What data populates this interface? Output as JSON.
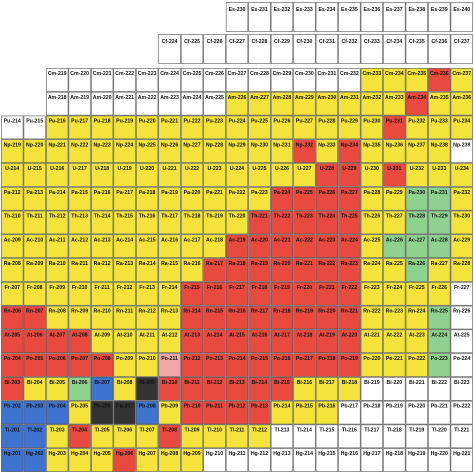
{
  "rows": [
    {
      "start": 10,
      "names": [
        "Es-230",
        "Es-231",
        "Es-232",
        "Es-233",
        "Es-234",
        "Es-235",
        "Es-236",
        "Es-237",
        "Es-238",
        "Es-239",
        "Es-240"
      ],
      "colors": [
        "#fff",
        "#fff",
        "#fff",
        "#fff",
        "#fff",
        "#fff",
        "#fff",
        "#fff",
        "#fff",
        "#fff",
        "#fff"
      ]
    },
    {
      "start": 7,
      "names": [
        "Cf-224",
        "Cf-225",
        "Cf-226",
        "Cf-227",
        "Cf-228",
        "Cf-229",
        "Cf-230",
        "Cf-231",
        "Cf-232",
        "Cf-233",
        "Cf-234",
        "Cf-235",
        "Cf-236",
        "Cf-237"
      ],
      "colors": [
        "#fff",
        "#fff",
        "#fff",
        "#fff",
        "#fff",
        "#fff",
        "#fff",
        "#fff",
        "#fff",
        "#fff",
        "#fff",
        "#fff",
        "#fff",
        "#fff"
      ]
    },
    {
      "start": 2,
      "names": [
        "Cm-219",
        "Cm-220",
        "Cm-221",
        "Cm-222",
        "Cm-223",
        "Cm-224",
        "Cm-225",
        "Cm-226",
        "Cm-227",
        "Cm-228",
        "Cm-229",
        "Cm-230",
        "Cm-231",
        "Cm-232",
        "Cm-233",
        "Cm-234",
        "Cm-235",
        "Cm-236",
        "Cm-237"
      ],
      "colors": [
        "#fff",
        "#fff",
        "#fff",
        "#fff",
        "#fff",
        "#fff",
        "#fff",
        "#fff",
        "#fff",
        "#fff",
        "#fff",
        "#fff",
        "#fff",
        "#fff",
        "#f3e33b",
        "#f3e33b",
        "#f3e33b",
        "#e84a3f",
        "#f3e33b"
      ]
    },
    {
      "start": 2,
      "names": [
        "Am-218",
        "Am-219",
        "Am-220",
        "Am-221",
        "Am-222",
        "Am-223",
        "Am-224",
        "Am-225",
        "Am-226",
        "Am-227",
        "Am-228",
        "Am-229",
        "Am-230",
        "Am-231",
        "Am-232",
        "Am-233",
        "Am-234",
        "Am-235",
        "Am-236"
      ],
      "colors": [
        "#fff",
        "#fff",
        "#fff",
        "#fff",
        "#fff",
        "#fff",
        "#fff",
        "#fff",
        "#f3e33b",
        "#f3e33b",
        "#f3e33b",
        "#f3e33b",
        "#f3e33b",
        "#f3e33b",
        "#f3e33b",
        "#f3e33b",
        "#e84a3f",
        "#f3e33b",
        "#f3e33b"
      ]
    },
    {
      "start": 0,
      "names": [
        "Pu-214",
        "Pu-215",
        "Pu-216",
        "Pu-217",
        "Pu-218",
        "Pu-219",
        "Pu-220",
        "Pu-221",
        "Pu-222",
        "Pu-223",
        "Pu-224",
        "Pu-225",
        "Pu-226",
        "Pu-227",
        "Pu-228",
        "Pu-229",
        "Pu-230",
        "Pu-231",
        "Pu-232",
        "Pu-233",
        "Pu-234"
      ],
      "colors": [
        "#fff",
        "#fff",
        "#f3e33b",
        "#f3e33b",
        "#f3e33b",
        "#f3e33b",
        "#f3e33b",
        "#f3e33b",
        "#f3e33b",
        "#f3e33b",
        "#f3e33b",
        "#f3e33b",
        "#f3e33b",
        "#f3e33b",
        "#f3e33b",
        "#f3e33b",
        "#f3e33b",
        "#e84a3f",
        "#f3e33b",
        "#f3e33b",
        "#f3e33b"
      ]
    },
    {
      "start": 0,
      "names": [
        "Np-219",
        "Np-220",
        "Np-221",
        "Np-222",
        "Np-223",
        "Np-224",
        "Np-225",
        "Np-226",
        "Np-227",
        "Np-228",
        "Np-229",
        "Np-230",
        "Np-231",
        "Np-232",
        "Np-233",
        "Np-234",
        "Np-235",
        "Np-236",
        "Np-237",
        "Np-238",
        "Np-239"
      ],
      "colors": [
        "#f3e33b",
        "#f3e33b",
        "#f3e33b",
        "#f3e33b",
        "#f3e33b",
        "#f3e33b",
        "#f3e33b",
        "#f3e33b",
        "#f3e33b",
        "#f3e33b",
        "#f3e33b",
        "#f3e33b",
        "#f3e33b",
        "#e84a3f",
        "#f3e33b",
        "#e84a3f",
        "#f3e33b",
        "#f3e33b",
        "#f3e33b",
        "#f3e33b",
        "#fff"
      ]
    },
    {
      "start": 0,
      "names": [
        "U-214",
        "U-215",
        "U-216",
        "U-217",
        "U-218",
        "U-219",
        "U-220",
        "U-221",
        "U-222",
        "U-223",
        "U-224",
        "U-225",
        "U-226",
        "U-227",
        "U-228",
        "U-229",
        "U-230",
        "U-231",
        "U-232",
        "U-233",
        "U-234"
      ],
      "colors": [
        "#f3e33b",
        "#f3e33b",
        "#f3e33b",
        "#f3e33b",
        "#f3e33b",
        "#f3e33b",
        "#f3e33b",
        "#f3e33b",
        "#f3e33b",
        "#f3e33b",
        "#f3e33b",
        "#f3e33b",
        "#f3e33b",
        "#f3e33b",
        "#e84a3f",
        "#e84a3f",
        "#f3e33b",
        "#e84a3f",
        "#f3e33b",
        "#f3e33b",
        "#f3e33b"
      ]
    },
    {
      "start": 0,
      "names": [
        "Pa-212",
        "Pa-213",
        "Pa-214",
        "Pa-215",
        "Pa-216",
        "Pa-217",
        "Pa-218",
        "Pa-219",
        "Pa-220",
        "Pa-221",
        "Pa-222",
        "Pa-223",
        "Pa-224",
        "Pa-225",
        "Pa-226",
        "Pa-227",
        "Pa-228",
        "Pa-229",
        "Pa-230",
        "Pa-231",
        "Pa-232"
      ],
      "colors": [
        "#f3e33b",
        "#f3e33b",
        "#f3e33b",
        "#f3e33b",
        "#f3e33b",
        "#f3e33b",
        "#f3e33b",
        "#f3e33b",
        "#f3e33b",
        "#f3e33b",
        "#f3e33b",
        "#f3e33b",
        "#e84a3f",
        "#e84a3f",
        "#e84a3f",
        "#e84a3f",
        "#f3e33b",
        "#f3e33b",
        "#8fd18f",
        "#8fd18f",
        "#f3e33b"
      ]
    },
    {
      "start": 0,
      "names": [
        "Th-210",
        "Th-211",
        "Th-212",
        "Th-213",
        "Th-214",
        "Th-215",
        "Th-216",
        "Th-217",
        "Th-218",
        "Th-219",
        "Th-220",
        "Th-221",
        "Th-222",
        "Th-223",
        "Th-224",
        "Th-225",
        "Th-226",
        "Th-227",
        "Th-228",
        "Th-229",
        "Th-230"
      ],
      "colors": [
        "#f3e33b",
        "#f3e33b",
        "#f3e33b",
        "#f3e33b",
        "#f3e33b",
        "#f3e33b",
        "#f3e33b",
        "#f3e33b",
        "#f3e33b",
        "#f3e33b",
        "#f3e33b",
        "#e84a3f",
        "#e84a3f",
        "#e84a3f",
        "#e84a3f",
        "#e84a3f",
        "#f3e33b",
        "#f3e33b",
        "#8fd18f",
        "#8fd18f",
        "#f3e33b"
      ]
    },
    {
      "start": 0,
      "names": [
        "Ac-209",
        "Ac-210",
        "Ac-211",
        "Ac-212",
        "Ac-213",
        "Ac-214",
        "Ac-215",
        "Ac-216",
        "Ac-217",
        "Ac-218",
        "Ac-219",
        "Ac-220",
        "Ac-221",
        "Ac-222",
        "Ac-223",
        "Ac-224",
        "Ac-225",
        "Ac-226",
        "Ac-227",
        "Ac-228",
        "Ac-229"
      ],
      "colors": [
        "#f3e33b",
        "#f3e33b",
        "#f3e33b",
        "#f3e33b",
        "#f3e33b",
        "#f3e33b",
        "#f3e33b",
        "#f3e33b",
        "#f3e33b",
        "#f3e33b",
        "#e84a3f",
        "#e84a3f",
        "#e84a3f",
        "#e84a3f",
        "#e84a3f",
        "#e84a3f",
        "#f3e33b",
        "#8fd18f",
        "#8fd18f",
        "#8fd18f",
        "#f3e33b"
      ]
    },
    {
      "start": 0,
      "names": [
        "Ra-208",
        "Ra-209",
        "Ra-210",
        "Ra-211",
        "Ra-212",
        "Ra-213",
        "Ra-214",
        "Ra-215",
        "Ra-216",
        "Ra-217",
        "Ra-218",
        "Ra-219",
        "Ra-220",
        "Ra-221",
        "Ra-222",
        "Ra-223",
        "Ra-224",
        "Ra-225",
        "Ra-226",
        "Ra-227",
        "Ra-228"
      ],
      "colors": [
        "#f3e33b",
        "#f3e33b",
        "#f3e33b",
        "#f3e33b",
        "#f3e33b",
        "#f3e33b",
        "#f3e33b",
        "#f3e33b",
        "#f3e33b",
        "#e84a3f",
        "#e84a3f",
        "#e84a3f",
        "#e84a3f",
        "#e84a3f",
        "#e84a3f",
        "#e84a3f",
        "#f3e33b",
        "#f3e33b",
        "#8fd18f",
        "#f3e33b",
        "#f3e33b"
      ]
    },
    {
      "start": 0,
      "names": [
        "Fr-207",
        "Fr-208",
        "Fr-209",
        "Fr-210",
        "Fr-211",
        "Fr-212",
        "Fr-213",
        "Fr-214",
        "Fr-215",
        "Fr-216",
        "Fr-217",
        "Fr-218",
        "Fr-219",
        "Fr-220",
        "Fr-221",
        "Fr-222",
        "Fr-223",
        "Fr-224",
        "Fr-225",
        "Fr-226",
        "Fr-227"
      ],
      "colors": [
        "#f3e33b",
        "#f3e33b",
        "#f3e33b",
        "#f3e33b",
        "#f3e33b",
        "#f3e33b",
        "#f3e33b",
        "#f3e33b",
        "#e84a3f",
        "#e84a3f",
        "#e84a3f",
        "#e84a3f",
        "#e84a3f",
        "#e84a3f",
        "#e84a3f",
        "#e84a3f",
        "#f3e33b",
        "#f3e33b",
        "#f3e33b",
        "#f3e33b",
        "#fff"
      ]
    },
    {
      "start": 0,
      "names": [
        "Rn-206",
        "Rn-207",
        "Rn-208",
        "Rn-209",
        "Rn-210",
        "Rn-211",
        "Rn-212",
        "Rn-213",
        "Rn-214",
        "Rn-215",
        "Rn-216",
        "Rn-217",
        "Rn-218",
        "Rn-219",
        "Rn-220",
        "Rn-221",
        "Rn-222",
        "Rn-223",
        "Rn-224",
        "Rn-225",
        "Rn-226"
      ],
      "colors": [
        "#e84a3f",
        "#e84a3f",
        "#f3e33b",
        "#f3e33b",
        "#f3e33b",
        "#f3e33b",
        "#f3e33b",
        "#f3e33b",
        "#e84a3f",
        "#e84a3f",
        "#e84a3f",
        "#e84a3f",
        "#e84a3f",
        "#e84a3f",
        "#e84a3f",
        "#e84a3f",
        "#f3e33b",
        "#f3e33b",
        "#f3e33b",
        "#8fd18f",
        "#fff"
      ]
    },
    {
      "start": 0,
      "names": [
        "At-205",
        "At-206",
        "At-207",
        "At-208",
        "At-209",
        "At-210",
        "At-211",
        "At-212",
        "At-213",
        "At-214",
        "At-215",
        "At-216",
        "At-217",
        "At-218",
        "At-219",
        "At-220",
        "At-221",
        "At-222",
        "At-223",
        "At-224",
        "At-225"
      ],
      "colors": [
        "#e84a3f",
        "#e84a3f",
        "#e84a3f",
        "#e84a3f",
        "#f3e33b",
        "#f3e33b",
        "#f3e33b",
        "#f3e33b",
        "#e84a3f",
        "#e84a3f",
        "#e84a3f",
        "#e84a3f",
        "#e84a3f",
        "#e84a3f",
        "#e84a3f",
        "#e84a3f",
        "#f3e33b",
        "#f3e33b",
        "#f3e33b",
        "#8fd18f",
        "#fff"
      ]
    },
    {
      "start": 0,
      "names": [
        "Po-204",
        "Po-205",
        "Po-206",
        "Po-207",
        "Po-208",
        "Po-209",
        "Po-210",
        "Po-211",
        "Po-212",
        "Po-213",
        "Po-214",
        "Po-215",
        "Po-216",
        "Po-217",
        "Po-218",
        "Po-219",
        "Po-220",
        "Po-221",
        "Po-222",
        "Po-223",
        "Po-224"
      ],
      "colors": [
        "#e84a3f",
        "#e84a3f",
        "#e84a3f",
        "#e84a3f",
        "#e84a3f",
        "#f3e33b",
        "#f3e33b",
        "#f2a6a6",
        "#e84a3f",
        "#e84a3f",
        "#e84a3f",
        "#e84a3f",
        "#e84a3f",
        "#e84a3f",
        "#e84a3f",
        "#e84a3f",
        "#f3e33b",
        "#f3e33b",
        "#f3e33b",
        "#8fd18f",
        "#fff"
      ]
    },
    {
      "start": 0,
      "names": [
        "Bi-203",
        "Bi-204",
        "Bi-205",
        "Bi-206",
        "Bi-207",
        "Bi-208",
        "Bi-209",
        "Bi-210",
        "Bi-211",
        "Bi-212",
        "Bi-213",
        "Bi-214",
        "Bi-215",
        "Bi-216",
        "Bi-217",
        "Bi-218",
        "Bi-219",
        "Bi-220",
        "Bi-221",
        "Bi-222",
        "Bi-223"
      ],
      "colors": [
        "#e84a3f",
        "#f3e33b",
        "#f3e33b",
        "#8fd18f",
        "#3e73d0",
        "#f3e33b",
        "#333",
        "#e84a3f",
        "#e84a3f",
        "#e84a3f",
        "#e84a3f",
        "#e84a3f",
        "#e84a3f",
        "#f3e33b",
        "#f3e33b",
        "#f3e33b",
        "#fff",
        "#fff",
        "#fff",
        "#fff",
        "#fff"
      ]
    },
    {
      "start": 0,
      "names": [
        "Pb-202",
        "Pb-203",
        "Pb-204",
        "Pb-205",
        "Pb-206",
        "Pb-207",
        "Pb-208",
        "Pb-209",
        "Pb-210",
        "Pb-211",
        "Pb-212",
        "Pb-213",
        "Pb-214",
        "Pb-215",
        "Pb-216",
        "Pb-217",
        "Pb-218",
        "Pb-219",
        "Pb-220",
        "Pb-221",
        "Pb-222"
      ],
      "colors": [
        "#3e73d0",
        "#3e73d0",
        "#3e73d0",
        "#f3e33b",
        "#333",
        "#333",
        "#3e73d0",
        "#f3e33b",
        "#e84a3f",
        "#e84a3f",
        "#e84a3f",
        "#e84a3f",
        "#f3e33b",
        "#f3e33b",
        "#f3e33b",
        "#fff",
        "#fff",
        "#fff",
        "#fff",
        "#fff",
        "#fff"
      ]
    },
    {
      "start": 0,
      "names": [
        "Tl-201",
        "Tl-202",
        "Tl-203",
        "Tl-204",
        "Tl-205",
        "Tl-206",
        "Tl-207",
        "Tl-208",
        "Tl-209",
        "Tl-210",
        "Tl-211",
        "Tl-212",
        "Tl-213",
        "Tl-214",
        "Tl-215",
        "Tl-216",
        "Tl-217",
        "Tl-218",
        "Tl-219",
        "Tl-220",
        "Tl-221"
      ],
      "colors": [
        "#3e73d0",
        "#3e73d0",
        "#f3e33b",
        "#e84a3f",
        "#f3e33b",
        "#f3e33b",
        "#f3e33b",
        "#e84a3f",
        "#f3e33b",
        "#f3e33b",
        "#f3e33b",
        "#f3e33b",
        "#fff",
        "#fff",
        "#fff",
        "#fff",
        "#fff",
        "#fff",
        "#fff",
        "#fff",
        "#fff"
      ]
    },
    {
      "start": 0,
      "names": [
        "Hg-201",
        "Hg-202",
        "Hg-203",
        "Hg-204",
        "Hg-205",
        "Hg-206",
        "Hg-207",
        "Hg-208",
        "Hg-209",
        "Hg-210",
        "Hg-211",
        "Hg-212",
        "Hg-213",
        "Hg-214",
        "Hg-215",
        "Hg-216",
        "Hg-217",
        "Hg-218",
        "Hg-219",
        "Hg-220",
        "Hg-221"
      ],
      "colors": [
        "#3e73d0",
        "#3e73d0",
        "#f3e33b",
        "#f3e33b",
        "#f3e33b",
        "#e84a3f",
        "#f3e33b",
        "#f3e33b",
        "#f3e33b",
        "#fff",
        "#fff",
        "#fff",
        "#fff",
        "#fff",
        "#fff",
        "#fff",
        "#fff",
        "#fff",
        "#fff",
        "#fff",
        "#fff"
      ]
    }
  ]
}
